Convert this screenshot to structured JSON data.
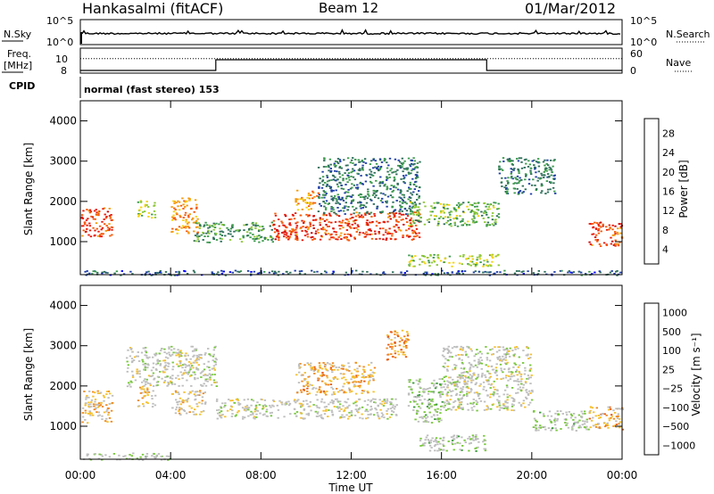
{
  "header": {
    "station": "Hankasalmi (fitACF)",
    "beam": "Beam 12",
    "date": "01/Mar/2012"
  },
  "noise_panel": {
    "left_label": "N.Sky",
    "left_ticks": [
      "10^5",
      "10^0"
    ],
    "right_ticks": [
      "10^5",
      "10^0"
    ],
    "right_label": "N.Search",
    "right_line_style": "dotted"
  },
  "freq_panel": {
    "left_label_top": "Freq.",
    "left_label_unit": "[MHz]",
    "left_ticks": [
      "10",
      "8"
    ],
    "right_ticks": [
      "60",
      "0"
    ],
    "right_label": "Nave",
    "right_line_style": "dotted"
  },
  "cpid": {
    "label": "CPID",
    "value": "normal (fast stereo) 153"
  },
  "power_panel": {
    "ylabel": "Slant Range [km]",
    "yticks": [
      "4000",
      "3000",
      "2000",
      "1000"
    ],
    "colorbar_label": "Power [dB]",
    "colorbar_ticks": [
      "28",
      "24",
      "20",
      "16",
      "12",
      "8",
      "4"
    ],
    "colorbar_colors": [
      "#0000ff",
      "#1f3fa8",
      "#2e6e5a",
      "#3c9b4c",
      "#8fc83a",
      "#f5d20a",
      "#f59a0a",
      "#f55a0a",
      "#e81a0a",
      "#cc0000"
    ]
  },
  "velocity_panel": {
    "ylabel": "Slant Range [km]",
    "yticks": [
      "4000",
      "3000",
      "2000",
      "1000"
    ],
    "colorbar_label": "Velocity [m s⁻¹]",
    "colorbar_ticks": [
      "1000",
      "500",
      "100",
      "25",
      "−25",
      "−100",
      "−500",
      "−1000"
    ],
    "colorbar_colors": [
      "#1a3fae",
      "#2e6e9a",
      "#2f7a3c",
      "#3c9b3c",
      "#78c83c",
      "#bebebe",
      "#bebebe",
      "#f5c030",
      "#f08a20",
      "#e85a10",
      "#e82a08",
      "#dd0000"
    ]
  },
  "x_axis": {
    "label": "Time UT",
    "ticks": [
      "00:00",
      "04:00",
      "08:00",
      "12:00",
      "16:00",
      "20:00",
      "00:00"
    ]
  },
  "chart_data": [
    {
      "type": "line",
      "title": "Hankasalmi (fitACF)  Beam 12  01/Mar/2012",
      "panel": "noise",
      "xlabel": "Time UT",
      "xlim": [
        "00:00",
        "24:00"
      ],
      "series": [
        {
          "name": "N.Sky",
          "scale": "log",
          "ylim_label": [
            "10^0",
            "10^5"
          ]
        },
        {
          "name": "N.Search",
          "scale": "log",
          "line": "dotted"
        }
      ]
    },
    {
      "type": "line",
      "panel": "frequency",
      "xlim": [
        "00:00",
        "24:00"
      ],
      "series": [
        {
          "name": "Freq. [MHz]",
          "ylim": [
            8,
            10
          ],
          "x": [
            "00:00",
            "06:00",
            "06:00",
            "18:00",
            "18:00",
            "24:00"
          ],
          "y": [
            8.0,
            8.0,
            10.0,
            10.0,
            8.0,
            8.0
          ]
        },
        {
          "name": "Nave",
          "ylim": [
            0,
            60
          ],
          "line": "dotted",
          "x": [
            "00:00",
            "24:00"
          ],
          "y": [
            33,
            33
          ]
        }
      ]
    },
    {
      "type": "heatmap",
      "panel": "power",
      "xlabel": "Time UT",
      "ylabel": "Slant Range [km]",
      "xlim": [
        "00:00",
        "24:00"
      ],
      "ylim": [
        180,
        4500
      ],
      "colorbar": {
        "label": "Power [dB]",
        "range": [
          0,
          30
        ]
      },
      "regions": [
        {
          "t0": 0.0,
          "t1": 1.4,
          "r0": 1100,
          "r1": 1850,
          "value": 24
        },
        {
          "t0": 2.5,
          "t1": 3.3,
          "r0": 1600,
          "r1": 2050,
          "value": 14
        },
        {
          "t0": 4.0,
          "t1": 5.2,
          "r0": 1200,
          "r1": 2100,
          "value": 20
        },
        {
          "t0": 5.0,
          "t1": 8.5,
          "r0": 1000,
          "r1": 1500,
          "value": 10
        },
        {
          "t0": 8.5,
          "t1": 15.0,
          "r0": 1050,
          "r1": 1750,
          "value": 24
        },
        {
          "t0": 9.5,
          "t1": 10.5,
          "r0": 1800,
          "r1": 2300,
          "value": 20
        },
        {
          "t0": 10.5,
          "t1": 15.0,
          "r0": 1700,
          "r1": 3100,
          "value": 8
        },
        {
          "t0": 14.5,
          "t1": 18.5,
          "r0": 1400,
          "r1": 2000,
          "value": 12
        },
        {
          "t0": 14.5,
          "t1": 18.5,
          "r0": 400,
          "r1": 700,
          "value": 14
        },
        {
          "t0": 18.5,
          "t1": 21.0,
          "r0": 2200,
          "r1": 3100,
          "value": 8
        },
        {
          "t0": 22.5,
          "t1": 24.0,
          "r0": 900,
          "r1": 1500,
          "value": 24
        },
        {
          "t0": 0.0,
          "t1": 24.0,
          "r0": 180,
          "r1": 300,
          "value": 6
        }
      ]
    },
    {
      "type": "heatmap",
      "panel": "velocity",
      "xlabel": "Time UT",
      "ylabel": "Slant Range [km]",
      "xlim": [
        "00:00",
        "24:00"
      ],
      "ylim": [
        180,
        4500
      ],
      "colorbar": {
        "label": "Velocity [m s⁻¹]",
        "range": [
          -1000,
          1000
        ]
      },
      "regions": [
        {
          "t0": 0.0,
          "t1": 1.4,
          "r0": 1100,
          "r1": 1900,
          "value": -200
        },
        {
          "t0": 2.5,
          "t1": 3.3,
          "r0": 1500,
          "r1": 2000,
          "value": -200
        },
        {
          "t0": 2.0,
          "t1": 6.0,
          "r0": 2000,
          "r1": 3000,
          "value": 0
        },
        {
          "t0": 4.0,
          "t1": 5.5,
          "r0": 1300,
          "r1": 1900,
          "value": -150
        },
        {
          "t0": 6.0,
          "t1": 14.0,
          "r0": 1200,
          "r1": 1700,
          "value": 0
        },
        {
          "t0": 9.5,
          "t1": 13.0,
          "r0": 1800,
          "r1": 2600,
          "value": -300
        },
        {
          "t0": 13.5,
          "t1": 14.5,
          "r0": 2600,
          "r1": 3400,
          "value": -400
        },
        {
          "t0": 14.5,
          "t1": 16.0,
          "r0": 1100,
          "r1": 2200,
          "value": 150
        },
        {
          "t0": 15.0,
          "t1": 18.0,
          "r0": 400,
          "r1": 800,
          "value": 100
        },
        {
          "t0": 16.0,
          "t1": 20.0,
          "r0": 1400,
          "r1": 3000,
          "value": 0
        },
        {
          "t0": 20.0,
          "t1": 22.5,
          "r0": 900,
          "r1": 1400,
          "value": 100
        },
        {
          "t0": 22.5,
          "t1": 24.0,
          "r0": 900,
          "r1": 1500,
          "value": -300
        },
        {
          "t0": 0.0,
          "t1": 4.0,
          "r0": 180,
          "r1": 350,
          "value": 100
        }
      ]
    }
  ]
}
